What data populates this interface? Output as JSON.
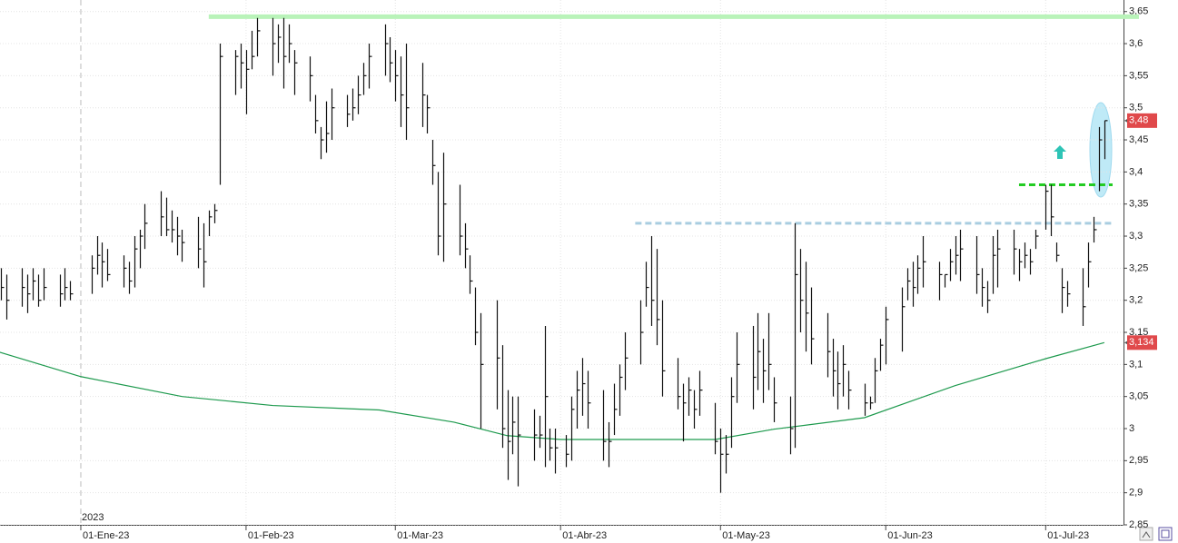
{
  "chart_data": {
    "type": "ohlc",
    "period_label": "2023",
    "x": [
      -15,
      -14,
      -11,
      -10,
      -9,
      -8,
      -7,
      -4,
      -3,
      -2,
      2,
      3,
      4,
      5,
      8,
      9,
      10,
      11,
      12,
      15,
      16,
      17,
      18,
      19,
      22,
      23,
      24,
      25,
      26,
      29,
      30,
      31,
      32,
      33,
      36,
      37,
      38,
      39,
      40,
      43,
      44,
      45,
      46,
      47,
      50,
      51,
      52,
      53,
      54,
      57,
      58,
      59,
      60,
      61,
      64,
      65,
      66,
      67,
      68,
      71,
      72,
      73,
      74,
      75,
      78,
      79,
      80,
      81,
      82,
      85,
      86,
      87,
      88,
      89,
      91,
      92,
      93,
      94,
      95,
      98,
      99,
      100,
      101,
      102,
      105,
      106,
      107,
      108,
      109,
      112,
      113,
      114,
      115,
      116,
      119,
      120,
      121,
      122,
      123,
      126,
      127,
      128,
      129,
      130,
      133,
      134,
      135,
      136,
      137,
      140,
      141,
      142,
      143,
      144,
      147,
      148,
      149,
      150,
      151,
      154,
      155,
      156,
      157,
      158,
      161,
      162,
      163,
      164,
      165,
      168,
      169,
      170,
      171,
      172,
      175,
      176,
      177,
      178,
      179,
      181,
      182,
      183,
      184,
      185,
      188,
      189,
      190,
      191,
      192
    ],
    "high": [
      3.25,
      3.24,
      3.25,
      3.24,
      3.25,
      3.24,
      3.25,
      3.24,
      3.25,
      3.23,
      3.27,
      3.3,
      3.29,
      3.28,
      3.27,
      3.26,
      3.3,
      3.31,
      3.35,
      3.37,
      3.36,
      3.34,
      3.33,
      3.31,
      3.33,
      3.32,
      3.34,
      3.35,
      3.6,
      3.59,
      3.6,
      3.59,
      3.62,
      3.64,
      3.64,
      3.63,
      3.64,
      3.63,
      3.59,
      3.58,
      3.52,
      3.47,
      3.51,
      3.53,
      3.52,
      3.53,
      3.55,
      3.57,
      3.6,
      3.63,
      3.61,
      3.59,
      3.58,
      3.6,
      3.57,
      3.52,
      3.45,
      3.4,
      3.43,
      3.38,
      3.32,
      3.27,
      3.22,
      3.18,
      3.2,
      3.13,
      3.06,
      3.05,
      3.05,
      3.03,
      3.02,
      3.16,
      3.0,
      3.0,
      2.99,
      3.05,
      3.09,
      3.11,
      3.09,
      3.06,
      3.01,
      3.07,
      3.1,
      3.15,
      3.2,
      3.26,
      3.3,
      3.28,
      3.2,
      3.11,
      3.07,
      3.08,
      3.06,
      3.09,
      3.04,
      3.0,
      2.99,
      3.08,
      3.15,
      3.16,
      3.18,
      3.14,
      3.18,
      3.08,
      3.05,
      3.32,
      3.28,
      3.26,
      3.22,
      3.18,
      3.14,
      3.12,
      3.13,
      3.09,
      3.07,
      3.05,
      3.11,
      3.14,
      3.19,
      3.22,
      3.25,
      3.26,
      3.27,
      3.3,
      3.26,
      3.24,
      3.28,
      3.3,
      3.31,
      3.3,
      3.25,
      3.23,
      3.3,
      3.31,
      3.31,
      3.28,
      3.29,
      3.28,
      3.31,
      3.38,
      3.38,
      3.29,
      3.25,
      3.23,
      3.25,
      3.29,
      3.33,
      3.47,
      3.48
    ],
    "low": [
      3.2,
      3.17,
      3.19,
      3.18,
      3.2,
      3.19,
      3.2,
      3.19,
      3.2,
      3.2,
      3.21,
      3.24,
      3.22,
      3.23,
      3.22,
      3.21,
      3.22,
      3.25,
      3.28,
      3.3,
      3.3,
      3.29,
      3.27,
      3.26,
      3.25,
      3.22,
      3.3,
      3.32,
      3.38,
      3.52,
      3.53,
      3.49,
      3.56,
      3.58,
      3.55,
      3.57,
      3.53,
      3.57,
      3.52,
      3.51,
      3.46,
      3.42,
      3.43,
      3.45,
      3.47,
      3.48,
      3.49,
      3.52,
      3.53,
      3.55,
      3.54,
      3.51,
      3.47,
      3.45,
      3.47,
      3.46,
      3.38,
      3.27,
      3.26,
      3.27,
      3.25,
      3.21,
      3.13,
      3.0,
      3.03,
      2.97,
      2.92,
      2.96,
      2.91,
      2.95,
      2.97,
      2.94,
      2.95,
      2.93,
      2.94,
      2.95,
      3.0,
      3.02,
      3.0,
      2.95,
      2.94,
      2.99,
      3.02,
      3.06,
      3.1,
      3.19,
      3.16,
      3.13,
      3.05,
      3.03,
      2.98,
      3.02,
      3.0,
      3.02,
      2.96,
      2.9,
      2.93,
      2.97,
      3.04,
      3.03,
      3.06,
      3.04,
      3.06,
      3.01,
      2.96,
      2.97,
      3.15,
      3.12,
      3.1,
      3.08,
      3.05,
      3.03,
      3.05,
      3.03,
      3.02,
      3.03,
      3.04,
      3.09,
      3.1,
      3.12,
      3.2,
      3.19,
      3.21,
      3.22,
      3.2,
      3.22,
      3.23,
      3.24,
      3.23,
      3.21,
      3.19,
      3.18,
      3.21,
      3.22,
      3.24,
      3.23,
      3.25,
      3.24,
      3.28,
      3.31,
      3.3,
      3.26,
      3.18,
      3.19,
      3.16,
      3.22,
      3.29,
      3.37,
      3.42
    ],
    "close": [
      3.22,
      3.2,
      3.22,
      3.21,
      3.23,
      3.2,
      3.22,
      3.21,
      3.22,
      3.21,
      3.25,
      3.27,
      3.26,
      3.24,
      3.25,
      3.23,
      3.28,
      3.3,
      3.32,
      3.33,
      3.31,
      3.31,
      3.3,
      3.29,
      3.28,
      3.26,
      3.33,
      3.34,
      3.58,
      3.58,
      3.57,
      3.56,
      3.58,
      3.62,
      3.6,
      3.61,
      3.58,
      3.6,
      3.57,
      3.55,
      3.48,
      3.45,
      3.46,
      3.5,
      3.49,
      3.5,
      3.52,
      3.55,
      3.58,
      3.6,
      3.57,
      3.55,
      3.52,
      3.5,
      3.52,
      3.5,
      3.41,
      3.3,
      3.35,
      3.3,
      3.28,
      3.23,
      3.15,
      3.1,
      3.11,
      3.0,
      2.98,
      3.01,
      2.99,
      2.99,
      2.99,
      3.05,
      2.97,
      2.97,
      2.96,
      3.03,
      3.06,
      3.07,
      3.04,
      2.98,
      2.98,
      3.03,
      3.08,
      3.11,
      3.15,
      3.22,
      3.2,
      3.17,
      3.09,
      3.05,
      3.04,
      3.06,
      3.03,
      3.06,
      2.98,
      2.96,
      2.96,
      3.05,
      3.1,
      3.08,
      3.12,
      3.09,
      3.1,
      3.04,
      3.0,
      3.24,
      3.2,
      3.18,
      3.14,
      3.12,
      3.09,
      3.07,
      3.1,
      3.06,
      3.04,
      3.04,
      3.09,
      3.13,
      3.17,
      3.19,
      3.23,
      3.22,
      3.25,
      3.26,
      3.24,
      3.24,
      3.26,
      3.27,
      3.28,
      3.24,
      3.22,
      3.2,
      3.27,
      3.28,
      3.28,
      3.26,
      3.27,
      3.26,
      3.3,
      3.37,
      3.33,
      3.27,
      3.22,
      3.21,
      3.19,
      3.26,
      3.31,
      3.45,
      3.48
    ],
    "bar_color": "#111111",
    "moving_average": {
      "color": "#1e9a4e",
      "x": [
        -15.2,
        0,
        19,
        36,
        56,
        70,
        80,
        90,
        104,
        119,
        130,
        147,
        164,
        181,
        192
      ],
      "values": [
        3.119,
        3.081,
        3.05,
        3.036,
        3.029,
        3.01,
        2.989,
        2.983,
        2.983,
        2.983,
        2.999,
        3.017,
        3.067,
        3.109,
        3.134
      ]
    },
    "levels": [
      {
        "value": 3.642,
        "from": 24,
        "color": "#b9f3b9",
        "style": "solid"
      },
      {
        "value": 3.32,
        "from": 104,
        "color": "#a9cde0",
        "style": "dashed"
      },
      {
        "value": 3.38,
        "from": 176,
        "color": "#22cc22",
        "style": "dashed"
      }
    ],
    "price_tags": [
      {
        "value": 3.48,
        "label": "3,48"
      },
      {
        "value": 3.134,
        "label": "3,134"
      }
    ],
    "xlim": [
      -15.16,
      195.6
    ],
    "xticks": [
      {
        "value": 0,
        "label": "01-Ene-23"
      },
      {
        "value": 31,
        "label": "01-Feb-23"
      },
      {
        "value": 59,
        "label": "01-Mar-23"
      },
      {
        "value": 90,
        "label": "01-Abr-23"
      },
      {
        "value": 120,
        "label": "01-May-23"
      },
      {
        "value": 151,
        "label": "01-Jun-23"
      },
      {
        "value": 181,
        "label": "01-Jul-23"
      }
    ],
    "ylim": [
      2.85,
      3.668
    ],
    "yticks": [
      {
        "value": 2.85,
        "label": "2,85"
      },
      {
        "value": 2.9,
        "label": "2,9"
      },
      {
        "value": 2.95,
        "label": "2,95"
      },
      {
        "value": 3,
        "label": "3"
      },
      {
        "value": 3.05,
        "label": "3,05"
      },
      {
        "value": 3.1,
        "label": "3,1"
      },
      {
        "value": 3.15,
        "label": "3,15"
      },
      {
        "value": 3.2,
        "label": "3,2"
      },
      {
        "value": 3.25,
        "label": "3,25"
      },
      {
        "value": 3.3,
        "label": "3,3"
      },
      {
        "value": 3.35,
        "label": "3,35"
      },
      {
        "value": 3.4,
        "label": "3,4"
      },
      {
        "value": 3.45,
        "label": "3,45"
      },
      {
        "value": 3.5,
        "label": "3,5"
      },
      {
        "value": 3.55,
        "label": "3,55"
      },
      {
        "value": 3.6,
        "label": "3,6"
      },
      {
        "value": 3.65,
        "label": "3,65"
      }
    ],
    "grid": true
  }
}
